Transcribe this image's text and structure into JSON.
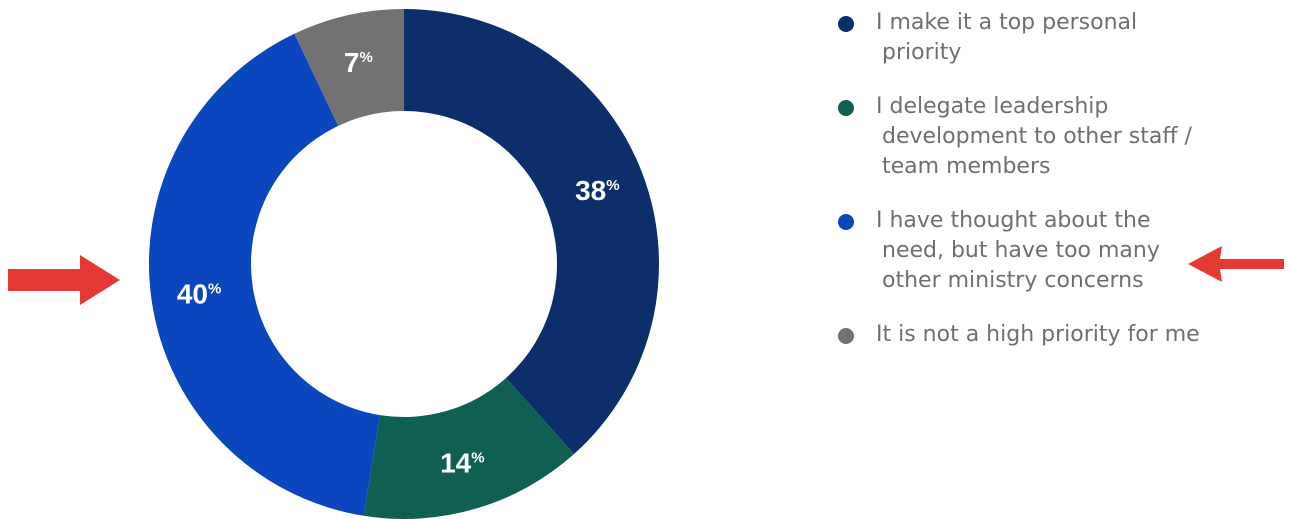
{
  "chart_data": {
    "type": "donut",
    "slices": [
      {
        "name": "I make it a top personal priority",
        "value": 38,
        "color": "#0c2e6b"
      },
      {
        "name": "I delegate leadership development to other staff / team members",
        "value": 14,
        "color": "#0f6052"
      },
      {
        "name": "I have thought about the need, but have too many other ministry concerns",
        "value": 40,
        "color": "#0a46bd"
      },
      {
        "name": "It is not a high priority for me",
        "value": 7,
        "color": "#727272"
      }
    ],
    "data_labels": [
      "38",
      "14",
      "40",
      "7"
    ],
    "label_suffix": "%",
    "start": "12 o'clock",
    "direction": "clockwise",
    "legend_placement": "right",
    "legend": [
      {
        "text": "I make it a top personal priority",
        "color": "#0c2e6b"
      },
      {
        "text": "I delegate leadership development to other staff / team members",
        "color": "#0f6052"
      },
      {
        "text": "I have thought about the need, but have too many other ministry concerns",
        "color": "#0a46bd"
      },
      {
        "text": "It is not a high priority for me",
        "color": "#727272"
      }
    ]
  },
  "annotations": {
    "arrow_color": "#e53935",
    "left_arrow": "points right at the 40% slice",
    "right_arrow": "points left at the third legend entry"
  }
}
